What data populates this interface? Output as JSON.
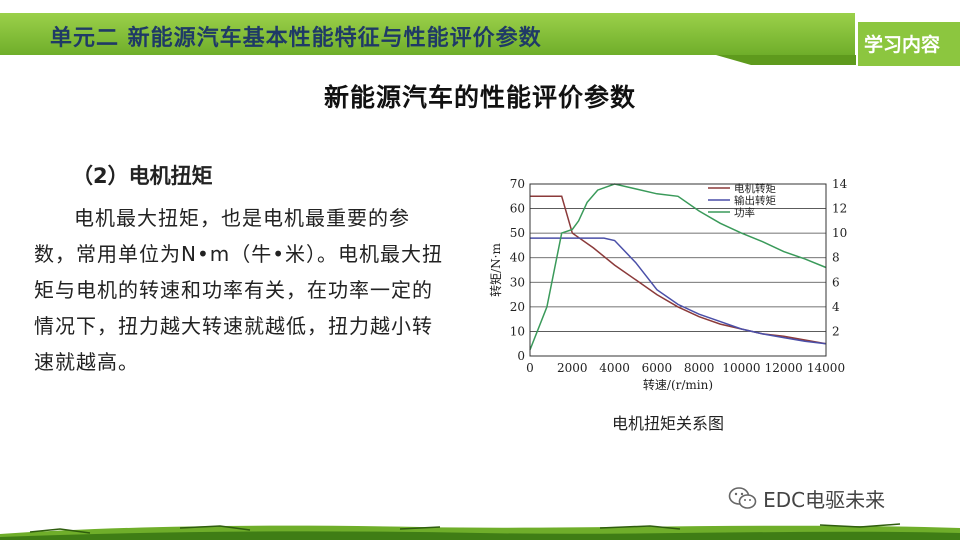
{
  "header": {
    "title": "单元二  新能源汽车基本性能特征与性能评价参数",
    "tab": "学习内容"
  },
  "page_title": "新能源汽车的性能评价参数",
  "section": {
    "subtitle": "（2）电机扭矩",
    "paragraph": "电机最大扭矩，也是电机最重要的参数，常用单位为N•m（牛•米）。电机最大扭矩与电机的转速和功率有关，在功率一定的情况下，扭力越大转速就越低，扭力越小转速就越高。"
  },
  "figure": {
    "caption": "电机扭矩关系图"
  },
  "watermark": "EDC电驱未来",
  "colors": {
    "header_green": "#8cc63f",
    "header_dark_green": "#5e9a1d",
    "header_text": "#1f3a66",
    "motor_torque": "#8b3a3a",
    "output_torque": "#4a4fa8",
    "power": "#3a9a5a"
  },
  "chart_data": {
    "type": "line",
    "xlabel": "转速/(r/min)",
    "ylabel": "转矩/N·m",
    "xlim": [
      0,
      14000
    ],
    "ylim": [
      0,
      70
    ],
    "y2lim": [
      0,
      14
    ],
    "x_ticks": [
      "0",
      "2000",
      "4000",
      "6000",
      "8000",
      "10000",
      "12000",
      "14000"
    ],
    "y_ticks": [
      "0",
      "10",
      "20",
      "30",
      "40",
      "50",
      "60",
      "70"
    ],
    "y2_ticks": [
      "2",
      "4",
      "6",
      "8",
      "10",
      "12",
      "14"
    ],
    "grid": true,
    "legend_position": "top-center",
    "series": [
      {
        "name": "电机转矩",
        "axis": "left",
        "color": "#8b3a3a",
        "points": [
          [
            0,
            65
          ],
          [
            1500,
            65
          ],
          [
            2000,
            50
          ],
          [
            3000,
            44
          ],
          [
            4000,
            37
          ],
          [
            5000,
            31
          ],
          [
            6000,
            25
          ],
          [
            7000,
            20
          ],
          [
            8000,
            16
          ],
          [
            9000,
            13
          ],
          [
            10000,
            11
          ],
          [
            11000,
            9
          ],
          [
            12000,
            8
          ],
          [
            13000,
            6.5
          ],
          [
            14000,
            5
          ]
        ]
      },
      {
        "name": "输出转矩",
        "axis": "left",
        "color": "#4a4fa8",
        "points": [
          [
            0,
            48
          ],
          [
            3500,
            48
          ],
          [
            4000,
            47
          ],
          [
            5000,
            38
          ],
          [
            6000,
            27
          ],
          [
            7000,
            21
          ],
          [
            8000,
            17
          ],
          [
            9000,
            14
          ],
          [
            10000,
            11
          ],
          [
            11000,
            9
          ],
          [
            12000,
            7.5
          ],
          [
            13000,
            6
          ],
          [
            14000,
            5
          ]
        ]
      },
      {
        "name": "功率",
        "axis": "right",
        "color": "#3a9a5a",
        "points": [
          [
            0,
            0.5
          ],
          [
            800,
            4
          ],
          [
            1500,
            10
          ],
          [
            2000,
            10.3
          ],
          [
            2300,
            11
          ],
          [
            2700,
            12.5
          ],
          [
            3200,
            13.5
          ],
          [
            4000,
            14
          ],
          [
            5000,
            13.6
          ],
          [
            6000,
            13.2
          ],
          [
            7000,
            13
          ],
          [
            8000,
            11.8
          ],
          [
            9000,
            10.8
          ],
          [
            10000,
            10
          ],
          [
            11000,
            9.3
          ],
          [
            12000,
            8.5
          ],
          [
            13000,
            7.9
          ],
          [
            14000,
            7.2
          ]
        ]
      }
    ]
  }
}
